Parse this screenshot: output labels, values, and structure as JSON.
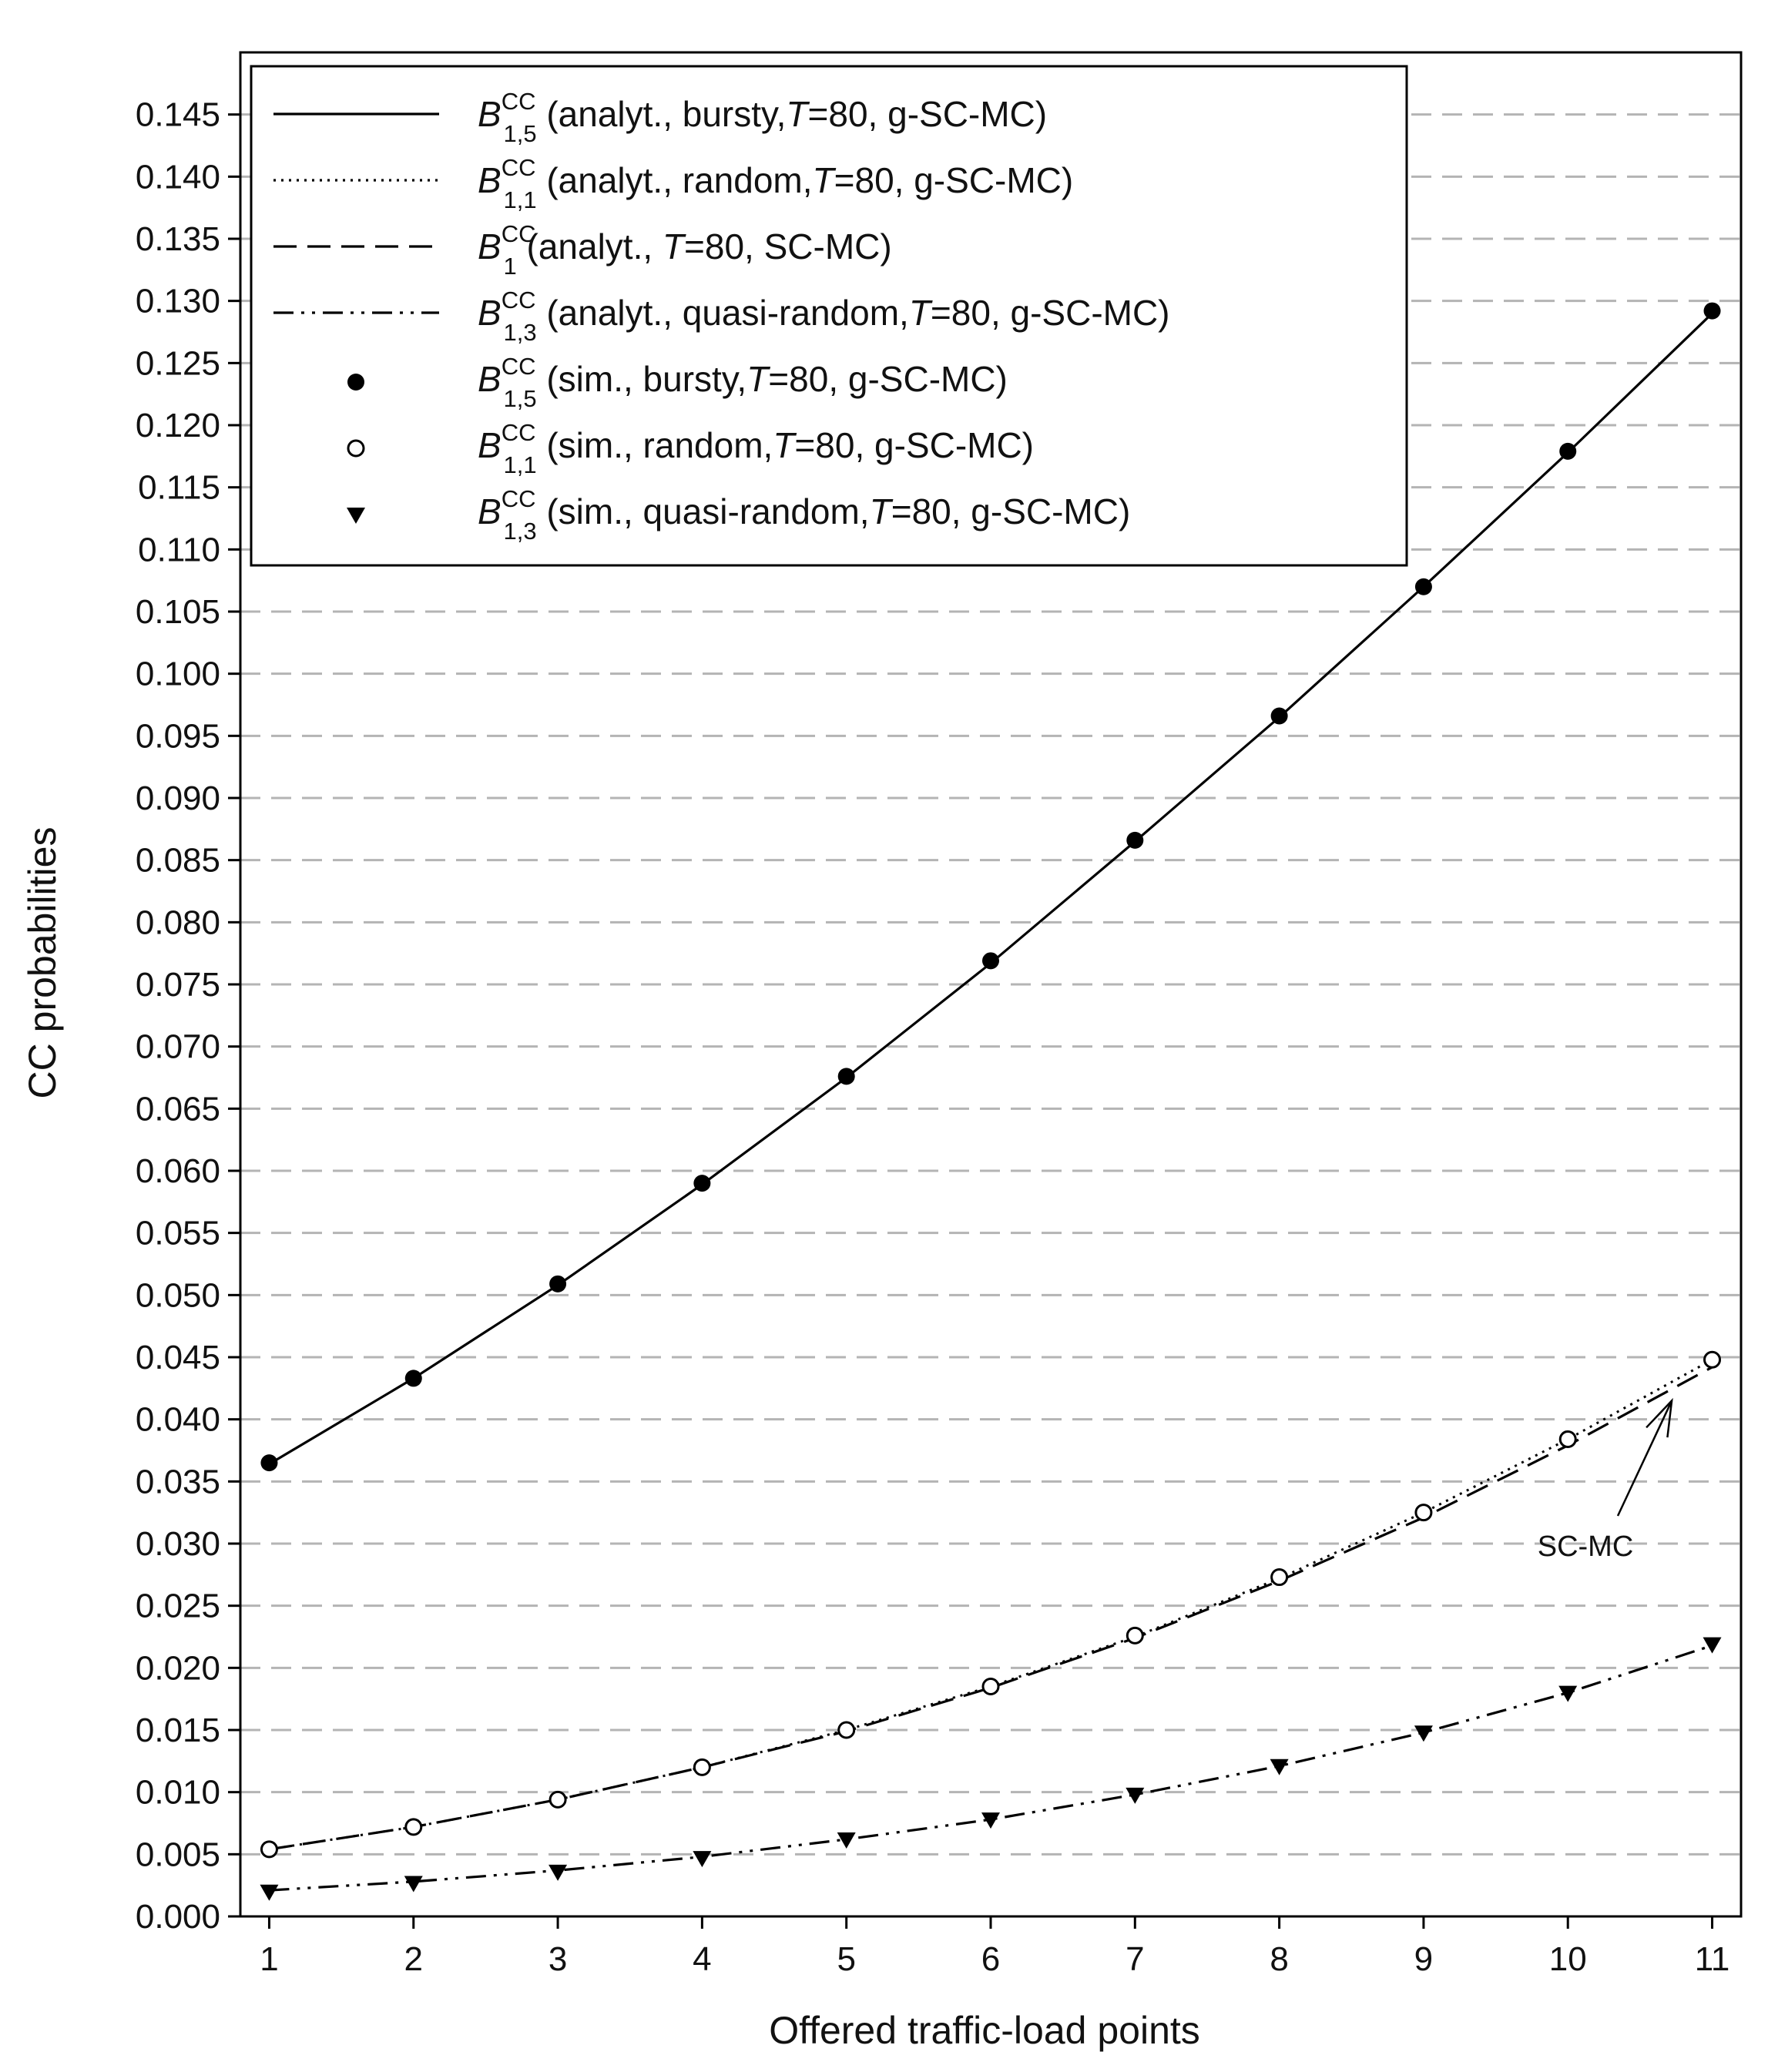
{
  "chart_data": {
    "type": "line",
    "xlabel": "Offered traffic-load points",
    "ylabel": "CC probabilities",
    "x": [
      1,
      2,
      3,
      4,
      5,
      6,
      7,
      8,
      9,
      10,
      11
    ],
    "xlim": [
      0.8,
      11.2
    ],
    "ylim": [
      0,
      0.15
    ],
    "yticks": [
      "0.000",
      "0.005",
      "0.010",
      "0.015",
      "0.020",
      "0.025",
      "0.030",
      "0.035",
      "0.040",
      "0.045",
      "0.050",
      "0.055",
      "0.060",
      "0.065",
      "0.070",
      "0.075",
      "0.080",
      "0.085",
      "0.090",
      "0.095",
      "0.100",
      "0.105",
      "0.110",
      "0.115",
      "0.120",
      "0.125",
      "0.130",
      "0.135",
      "0.140",
      "0.145"
    ],
    "xticks": [
      "1",
      "2",
      "3",
      "4",
      "5",
      "6",
      "7",
      "8",
      "9",
      "10",
      "11"
    ],
    "grid": "horizontal dashed",
    "legend_position": "top-left",
    "series": [
      {
        "key": "a15",
        "sym": "B",
        "sup": "CC",
        "sub": "1,5",
        "desc": " (analyt., bursty,",
        "T": "T",
        "rest": "=80, g-SC-MC)",
        "style": "solid",
        "marker": "none",
        "values": [
          0.0364,
          0.0433,
          0.0508,
          0.0589,
          0.0675,
          0.0767,
          0.0865,
          0.0965,
          0.107,
          0.1178,
          0.129
        ]
      },
      {
        "key": "a11",
        "sym": "B",
        "sup": "CC",
        "sub": "1,1",
        "desc": " (analyt., random,",
        "T": "T",
        "rest": "=80, g-SC-MC)",
        "style": "dotted",
        "marker": "none",
        "values": [
          0.0054,
          0.0072,
          0.0094,
          0.012,
          0.015,
          0.0185,
          0.0225,
          0.0272,
          0.0325,
          0.0384,
          0.0448
        ]
      },
      {
        "key": "a1",
        "sym": "B",
        "sup": "CC",
        "sub": "1",
        "desc": " (analyt., ",
        "T": "T",
        "rest": "=80, SC-MC)",
        "style": "dashed",
        "marker": "none",
        "values": [
          0.0054,
          0.0072,
          0.0094,
          0.012,
          0.0149,
          0.0184,
          0.0224,
          0.027,
          0.0321,
          0.0379,
          0.0442
        ]
      },
      {
        "key": "a13",
        "sym": "B",
        "sup": "CC",
        "sub": "1,3",
        "desc": " (analyt., quasi-random,",
        "T": "T",
        "rest": "=80, g-SC-MC)",
        "style": "dashdotdot",
        "marker": "none",
        "values": [
          0.0021,
          0.0028,
          0.0037,
          0.0048,
          0.0062,
          0.0078,
          0.0098,
          0.0121,
          0.0148,
          0.018,
          0.0218
        ]
      },
      {
        "key": "s15",
        "sym": "B",
        "sup": "CC",
        "sub": "1,5",
        "desc": " (sim., bursty,",
        "T": "T",
        "rest": "=80, g-SC-MC)",
        "style": "none",
        "marker": "filled-circle",
        "values": [
          0.0365,
          0.0433,
          0.0509,
          0.059,
          0.0676,
          0.0769,
          0.0866,
          0.0966,
          0.107,
          0.1179,
          0.1292
        ]
      },
      {
        "key": "s11",
        "sym": "B",
        "sup": "CC",
        "sub": "1,1",
        "desc": " (sim., random,",
        "T": "T",
        "rest": "=80, g-SC-MC)",
        "style": "none",
        "marker": "open-circle",
        "values": [
          0.0054,
          0.0072,
          0.0094,
          0.012,
          0.015,
          0.0185,
          0.0226,
          0.0273,
          0.0325,
          0.0384,
          0.0448
        ]
      },
      {
        "key": "s13",
        "sym": "B",
        "sup": "CC",
        "sub": "1,3",
        "desc": " (sim., quasi-random,",
        "T": "T",
        "rest": "=80, g-SC-MC)",
        "style": "none",
        "marker": "filled-triangle-down",
        "values": [
          0.002,
          0.0027,
          0.0036,
          0.0047,
          0.0062,
          0.0078,
          0.0098,
          0.0121,
          0.0148,
          0.018,
          0.0219
        ]
      }
    ],
    "annotations": [
      {
        "text": "SC-MC",
        "points_to": "B^CC_1 (analyt., T=80, SC-MC) near x=10.7"
      }
    ]
  }
}
